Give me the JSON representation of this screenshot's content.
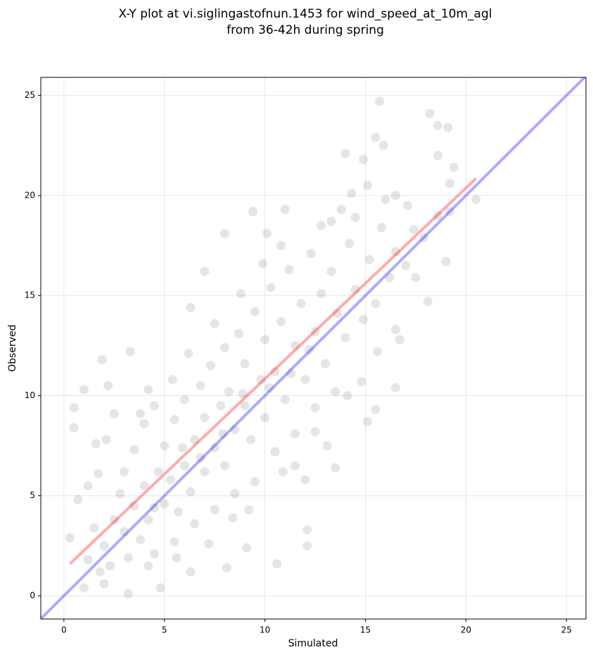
{
  "chart_data": {
    "type": "scatter",
    "title": [
      "X-Y plot at vi.siglingastofnun.1453 for wind_speed_at_10m_agl",
      "from 36-42h during spring"
    ],
    "x_label": "Simulated",
    "y_label": "Observed",
    "xlim": [
      -1.15,
      25.97
    ],
    "ylim": [
      -1.16,
      25.9
    ],
    "xticks": [
      0,
      5,
      10,
      15,
      20,
      25
    ],
    "yticks": [
      0,
      5,
      10,
      15,
      20,
      25
    ],
    "grid": true,
    "series": [
      {
        "color": "rgba(0,0,0,0.1)",
        "x": [
          15.7,
          18.2,
          18.6,
          19.1,
          15.5,
          15.9,
          14,
          18.6,
          19.4,
          19.2,
          20.5,
          3.2,
          4.8,
          12.1,
          12.1,
          10.6,
          8.1,
          16.5,
          15.1,
          15.5,
          13.5,
          13.1,
          0.5,
          0.5,
          1,
          1.9,
          2.2,
          3.3,
          6.3,
          7,
          8,
          9.4,
          10.1,
          11,
          13.3,
          14.3,
          14.5,
          17.1,
          16.5,
          18.1,
          17.5,
          17.4,
          16.7,
          14.8,
          12,
          10.9,
          11.5,
          12.5,
          9.1,
          6.3,
          4.2,
          2,
          1,
          0.3,
          0.7,
          1.2,
          1.6,
          2.5,
          2,
          2.5,
          3,
          3.5,
          3.8,
          4,
          4.2,
          4.5,
          4.7,
          5,
          5,
          5.3,
          5.5,
          5.7,
          6,
          6,
          6.3,
          6.5,
          6.8,
          7,
          7,
          7.3,
          7.5,
          7.8,
          8,
          8,
          8.2,
          8.5,
          8.7,
          9,
          9,
          9.3,
          9.5,
          9.8,
          10,
          10,
          10.3,
          10.5,
          10.8,
          11,
          11.2,
          11.5,
          11.8,
          12,
          12.3,
          12.5,
          12.8,
          13,
          13.3,
          13.6,
          14,
          14.2,
          14.5,
          14.9,
          15.2,
          15.5,
          15.8,
          16.2,
          16.5,
          17,
          3,
          3.5,
          4,
          4.5,
          2.8,
          1.5,
          1.2,
          1.8,
          2.3,
          3.2,
          4.5,
          5.5,
          6.5,
          7.5,
          8.5,
          9.5,
          10.5,
          11.5,
          12.5,
          13.5,
          6.2,
          7.5,
          8.8,
          9.9,
          10.8,
          5.4,
          4.2,
          3.8,
          2.1,
          1.7,
          12.8,
          13.8,
          15.1,
          14.9,
          16,
          17.9,
          18.6,
          19.2,
          19,
          16.5,
          15.6,
          14.1,
          9.2,
          8.4,
          7.2,
          5.6,
          6.8,
          5.9,
          7.9,
          8.9,
          10.2,
          11.3,
          12.2
        ],
        "y": [
          24.7,
          24.1,
          23.5,
          23.4,
          22.9,
          22.5,
          22.1,
          22,
          21.4,
          20.6,
          19.8,
          0.1,
          0.4,
          3.3,
          2.5,
          1.6,
          1.4,
          10.4,
          8.7,
          9.3,
          6.4,
          7.5,
          9.4,
          8.4,
          10.3,
          11.8,
          10.5,
          12.2,
          14.4,
          16.2,
          18.1,
          19.2,
          18.1,
          19.3,
          18.7,
          20.1,
          18.9,
          19.5,
          20,
          14.7,
          15.9,
          18.3,
          12.8,
          10.7,
          5.8,
          6.2,
          6.5,
          8.2,
          2.4,
          1.2,
          1.5,
          0.6,
          0.4,
          2.9,
          4.8,
          5.5,
          7.6,
          9.1,
          2.5,
          3.8,
          3.2,
          4.5,
          2.8,
          5.5,
          3.8,
          4.4,
          6.2,
          4.6,
          7.5,
          5.8,
          8.8,
          4.2,
          6.5,
          9.8,
          5.2,
          7.8,
          10.5,
          6.2,
          8.9,
          11.5,
          7.4,
          9.5,
          12.4,
          6.5,
          10.2,
          8.3,
          13.1,
          9.5,
          11.6,
          7.8,
          14.2,
          10.8,
          12.8,
          8.9,
          15.4,
          11.2,
          13.7,
          9.8,
          16.3,
          12.5,
          14.6,
          10.8,
          17.1,
          13.2,
          15.1,
          11.6,
          16.2,
          14.1,
          12.9,
          17.6,
          15.3,
          13.8,
          16.8,
          14.6,
          18.4,
          15.9,
          17.2,
          16.5,
          6.2,
          7.3,
          8.6,
          9.5,
          5.1,
          3.4,
          1.8,
          1.2,
          1.5,
          1.9,
          2.1,
          2.7,
          3.6,
          4.3,
          5.1,
          5.7,
          7.2,
          8.1,
          9.4,
          10.2,
          12.1,
          13.6,
          15.1,
          16.6,
          17.5,
          10.8,
          10.3,
          9.1,
          7.8,
          6.1,
          18.5,
          19.3,
          20.5,
          21.8,
          19.8,
          17.9,
          19,
          19.2,
          16.7,
          13.3,
          12.2,
          10,
          4.3,
          3.9,
          2.6,
          1.9,
          6.9,
          7.4,
          8.1,
          10.1,
          10.4,
          11.1,
          12.3
        ]
      }
    ],
    "lines": [
      {
        "color": "rgba(0,0,255,0.33)",
        "x": [
          -1.15,
          25.97
        ],
        "y": [
          -1.15,
          25.97
        ]
      },
      {
        "color": "rgba(255,0,0,0.33)",
        "x": [
          0.3,
          20.5
        ],
        "y": [
          1.6,
          20.85
        ]
      }
    ]
  }
}
